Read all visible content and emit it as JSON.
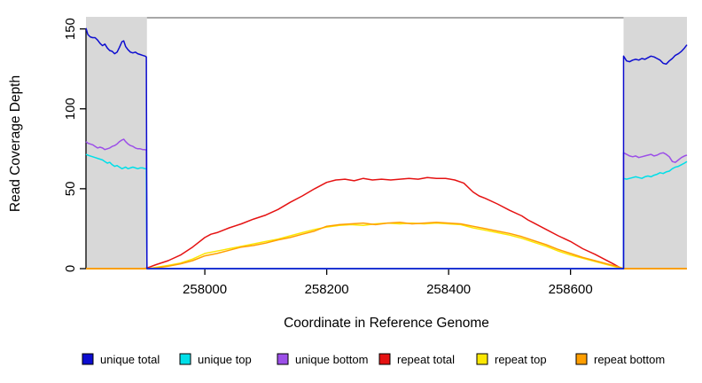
{
  "chart_data": {
    "type": "line",
    "title": "",
    "xlabel": "Coordinate in Reference Genome",
    "ylabel": "Read Coverage Depth",
    "xlim": [
      257805,
      258791
    ],
    "ylim": [
      0,
      157
    ],
    "x_ticks": [
      258000,
      258200,
      258400,
      258600
    ],
    "y_ticks": [
      0,
      50,
      100,
      150
    ],
    "grid": false,
    "legend_position": "bottom",
    "box_top_color": "#8a8a8a",
    "axis_color": "#000000",
    "shaded_regions": [
      {
        "name": "left-flank-unique-region",
        "x0": 257805,
        "x1": 257905,
        "color": "#d8d8d8"
      },
      {
        "name": "right-flank-unique-region",
        "x0": 258687,
        "x1": 258791,
        "color": "#d8d8d8"
      }
    ],
    "draw_order": [
      3,
      4,
      5,
      2,
      1,
      0
    ],
    "series": [
      {
        "name": "unique total",
        "color": "#0d0dd0",
        "points": [
          [
            257805,
            150.5
          ],
          [
            257808,
            146.5
          ],
          [
            257812,
            145
          ],
          [
            257816,
            144.5
          ],
          [
            257820,
            144.5
          ],
          [
            257824,
            143
          ],
          [
            257828,
            141
          ],
          [
            257832,
            139.5
          ],
          [
            257836,
            140.5
          ],
          [
            257840,
            138
          ],
          [
            257844,
            136.5
          ],
          [
            257848,
            136
          ],
          [
            257852,
            134.5
          ],
          [
            257856,
            135.5
          ],
          [
            257860,
            138.5
          ],
          [
            257864,
            142
          ],
          [
            257867,
            142.5
          ],
          [
            257870,
            139
          ],
          [
            257874,
            137
          ],
          [
            257878,
            135.5
          ],
          [
            257882,
            135
          ],
          [
            257886,
            135.5
          ],
          [
            257890,
            134.5
          ],
          [
            257894,
            134
          ],
          [
            257898,
            133.5
          ],
          [
            257902,
            133
          ],
          [
            257904,
            132.5
          ],
          [
            257905,
            0
          ],
          [
            258687,
            0
          ],
          [
            258687,
            133
          ],
          [
            258692,
            130
          ],
          [
            258697,
            129.5
          ],
          [
            258702,
            130.5
          ],
          [
            258707,
            131
          ],
          [
            258712,
            130.5
          ],
          [
            258717,
            131.5
          ],
          [
            258722,
            131
          ],
          [
            258727,
            132
          ],
          [
            258732,
            133
          ],
          [
            258737,
            132.5
          ],
          [
            258742,
            131.5
          ],
          [
            258747,
            130.5
          ],
          [
            258752,
            128.5
          ],
          [
            258757,
            128
          ],
          [
            258762,
            130
          ],
          [
            258767,
            131.5
          ],
          [
            258772,
            133.5
          ],
          [
            258777,
            134.5
          ],
          [
            258782,
            136
          ],
          [
            258787,
            138
          ],
          [
            258791,
            140
          ]
        ]
      },
      {
        "name": "unique top",
        "color": "#00dfe8",
        "points": [
          [
            257805,
            71.5
          ],
          [
            257808,
            71
          ],
          [
            257812,
            70.5
          ],
          [
            257816,
            70
          ],
          [
            257820,
            69.5
          ],
          [
            257824,
            69
          ],
          [
            257828,
            68.5
          ],
          [
            257832,
            68
          ],
          [
            257836,
            67
          ],
          [
            257840,
            66
          ],
          [
            257844,
            66.5
          ],
          [
            257848,
            65
          ],
          [
            257852,
            64
          ],
          [
            257856,
            64.5
          ],
          [
            257860,
            63.5
          ],
          [
            257864,
            62.5
          ],
          [
            257867,
            63
          ],
          [
            257870,
            63.5
          ],
          [
            257874,
            62.5
          ],
          [
            257878,
            63
          ],
          [
            257882,
            63.5
          ],
          [
            257886,
            63
          ],
          [
            257890,
            62.5
          ],
          [
            257894,
            63
          ],
          [
            257898,
            63
          ],
          [
            257902,
            62.5
          ],
          [
            257904,
            62.5
          ],
          [
            257905,
            0
          ],
          [
            258687,
            0
          ],
          [
            258687,
            56.5
          ],
          [
            258692,
            56
          ],
          [
            258697,
            56.5
          ],
          [
            258702,
            57
          ],
          [
            258707,
            57.5
          ],
          [
            258712,
            57
          ],
          [
            258717,
            56.5
          ],
          [
            258722,
            57.5
          ],
          [
            258727,
            58
          ],
          [
            258732,
            57.5
          ],
          [
            258737,
            58.5
          ],
          [
            258742,
            59
          ],
          [
            258747,
            60
          ],
          [
            258752,
            59.5
          ],
          [
            258757,
            60.5
          ],
          [
            258762,
            61
          ],
          [
            258767,
            62.5
          ],
          [
            258772,
            63.5
          ],
          [
            258777,
            64
          ],
          [
            258782,
            65
          ],
          [
            258787,
            66
          ],
          [
            258791,
            67
          ]
        ]
      },
      {
        "name": "unique bottom",
        "color": "#9c4fe8",
        "points": [
          [
            257805,
            79.5
          ],
          [
            257808,
            78.5
          ],
          [
            257812,
            78
          ],
          [
            257816,
            77.5
          ],
          [
            257820,
            76.5
          ],
          [
            257824,
            75.5
          ],
          [
            257828,
            76
          ],
          [
            257832,
            75.5
          ],
          [
            257836,
            74.5
          ],
          [
            257840,
            75
          ],
          [
            257844,
            75.5
          ],
          [
            257848,
            76.5
          ],
          [
            257852,
            77
          ],
          [
            257856,
            78
          ],
          [
            257860,
            79.5
          ],
          [
            257864,
            80.5
          ],
          [
            257867,
            81
          ],
          [
            257870,
            79.5
          ],
          [
            257874,
            78
          ],
          [
            257878,
            77
          ],
          [
            257882,
            76.5
          ],
          [
            257886,
            75.5
          ],
          [
            257890,
            75
          ],
          [
            257894,
            75
          ],
          [
            257898,
            74.5
          ],
          [
            257902,
            74.5
          ],
          [
            257904,
            74
          ],
          [
            257905,
            0
          ],
          [
            258687,
            0
          ],
          [
            258687,
            72.5
          ],
          [
            258692,
            71.5
          ],
          [
            258697,
            70.5
          ],
          [
            258702,
            70
          ],
          [
            258707,
            70.5
          ],
          [
            258712,
            69.5
          ],
          [
            258717,
            70
          ],
          [
            258722,
            70.5
          ],
          [
            258727,
            71
          ],
          [
            258732,
            71.5
          ],
          [
            258737,
            70.5
          ],
          [
            258742,
            71
          ],
          [
            258747,
            72
          ],
          [
            258752,
            72.5
          ],
          [
            258757,
            71.5
          ],
          [
            258762,
            70
          ],
          [
            258767,
            67
          ],
          [
            258772,
            66.5
          ],
          [
            258777,
            68
          ],
          [
            258782,
            69.5
          ],
          [
            258787,
            70.5
          ],
          [
            258791,
            71
          ]
        ]
      },
      {
        "name": "repeat total",
        "color": "#e51212",
        "points": [
          [
            257805,
            0
          ],
          [
            257900,
            0
          ],
          [
            257906,
            0.5
          ],
          [
            257920,
            2.5
          ],
          [
            257940,
            5
          ],
          [
            257960,
            8.5
          ],
          [
            257980,
            13.5
          ],
          [
            258000,
            19.5
          ],
          [
            258010,
            21.5
          ],
          [
            258020,
            22.5
          ],
          [
            258040,
            25.5
          ],
          [
            258060,
            28
          ],
          [
            258080,
            31
          ],
          [
            258100,
            33.5
          ],
          [
            258120,
            37
          ],
          [
            258140,
            41.5
          ],
          [
            258160,
            45.5
          ],
          [
            258180,
            50
          ],
          [
            258200,
            54
          ],
          [
            258215,
            55.5
          ],
          [
            258230,
            56
          ],
          [
            258245,
            55
          ],
          [
            258260,
            56.5
          ],
          [
            258275,
            55.5
          ],
          [
            258290,
            56
          ],
          [
            258305,
            55.5
          ],
          [
            258320,
            56
          ],
          [
            258335,
            56.5
          ],
          [
            258350,
            56
          ],
          [
            258365,
            57
          ],
          [
            258380,
            56.5
          ],
          [
            258395,
            56.5
          ],
          [
            258410,
            55.5
          ],
          [
            258425,
            53.5
          ],
          [
            258440,
            48
          ],
          [
            258450,
            45.5
          ],
          [
            258460,
            44
          ],
          [
            258480,
            40.5
          ],
          [
            258500,
            36.5
          ],
          [
            258520,
            33
          ],
          [
            258530,
            30.5
          ],
          [
            258540,
            28.5
          ],
          [
            258560,
            24.5
          ],
          [
            258580,
            20.5
          ],
          [
            258600,
            17
          ],
          [
            258620,
            12.5
          ],
          [
            258640,
            9
          ],
          [
            258655,
            6
          ],
          [
            258670,
            3
          ],
          [
            258682,
            0.5
          ],
          [
            258684,
            0
          ],
          [
            258791,
            0
          ]
        ]
      },
      {
        "name": "repeat top",
        "color": "#fbe703",
        "points": [
          [
            257805,
            0
          ],
          [
            257906,
            0
          ],
          [
            257915,
            0.5
          ],
          [
            257940,
            2
          ],
          [
            257960,
            3.5
          ],
          [
            257980,
            6
          ],
          [
            258000,
            9.5
          ],
          [
            258020,
            11
          ],
          [
            258040,
            12.5
          ],
          [
            258060,
            14
          ],
          [
            258080,
            15.5
          ],
          [
            258100,
            17
          ],
          [
            258120,
            18.5
          ],
          [
            258140,
            20.5
          ],
          [
            258160,
            22.5
          ],
          [
            258180,
            24.5
          ],
          [
            258200,
            26
          ],
          [
            258220,
            27
          ],
          [
            258240,
            27.5
          ],
          [
            258260,
            27
          ],
          [
            258280,
            28
          ],
          [
            258300,
            28.5
          ],
          [
            258320,
            28
          ],
          [
            258340,
            28.5
          ],
          [
            258360,
            28
          ],
          [
            258380,
            28.5
          ],
          [
            258400,
            28
          ],
          [
            258420,
            27.5
          ],
          [
            258440,
            25.5
          ],
          [
            258460,
            24
          ],
          [
            258480,
            22.5
          ],
          [
            258500,
            21
          ],
          [
            258520,
            19
          ],
          [
            258540,
            16.5
          ],
          [
            258560,
            14
          ],
          [
            258580,
            11
          ],
          [
            258600,
            8.5
          ],
          [
            258620,
            6.5
          ],
          [
            258640,
            4.5
          ],
          [
            258660,
            2.5
          ],
          [
            258675,
            1
          ],
          [
            258684,
            0
          ],
          [
            258791,
            0
          ]
        ]
      },
      {
        "name": "repeat bottom",
        "color": "#ff9e00",
        "points": [
          [
            257805,
            0
          ],
          [
            257906,
            0
          ],
          [
            257920,
            0.5
          ],
          [
            257940,
            1.5
          ],
          [
            257960,
            3
          ],
          [
            257980,
            5
          ],
          [
            258000,
            8
          ],
          [
            258020,
            9.5
          ],
          [
            258040,
            11.5
          ],
          [
            258060,
            13.5
          ],
          [
            258080,
            14.5
          ],
          [
            258100,
            16
          ],
          [
            258120,
            18
          ],
          [
            258140,
            19.5
          ],
          [
            258160,
            21.5
          ],
          [
            258180,
            23.5
          ],
          [
            258200,
            26.5
          ],
          [
            258220,
            27.5
          ],
          [
            258240,
            28
          ],
          [
            258260,
            28.5
          ],
          [
            258280,
            27.5
          ],
          [
            258300,
            28.5
          ],
          [
            258320,
            29
          ],
          [
            258340,
            28
          ],
          [
            258360,
            28.5
          ],
          [
            258380,
            29
          ],
          [
            258400,
            28.5
          ],
          [
            258420,
            28
          ],
          [
            258440,
            26.5
          ],
          [
            258460,
            25
          ],
          [
            258480,
            23.5
          ],
          [
            258500,
            22
          ],
          [
            258520,
            20
          ],
          [
            258540,
            17.5
          ],
          [
            258560,
            15
          ],
          [
            258580,
            12
          ],
          [
            258600,
            9.5
          ],
          [
            258620,
            7
          ],
          [
            258640,
            5
          ],
          [
            258660,
            3
          ],
          [
            258675,
            1.5
          ],
          [
            258688,
            0
          ],
          [
            258791,
            0
          ]
        ]
      }
    ]
  }
}
